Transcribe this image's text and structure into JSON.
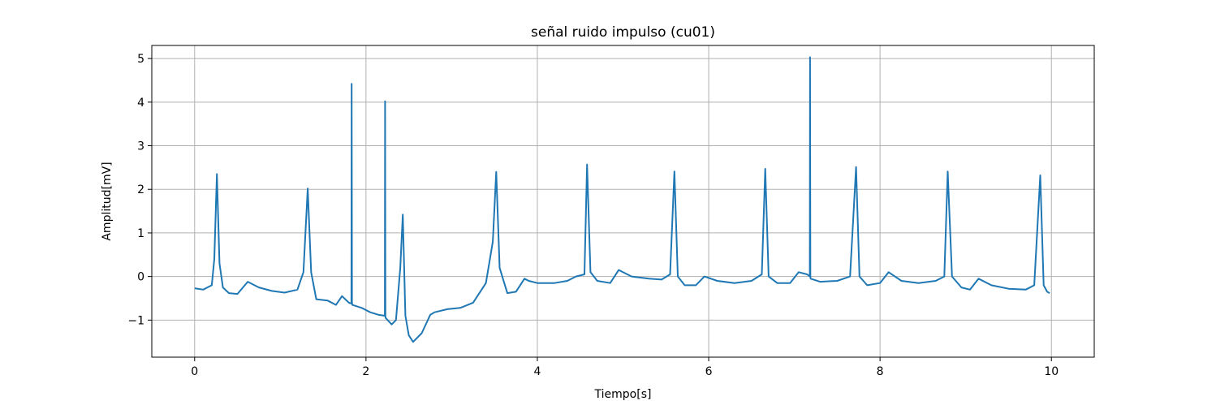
{
  "chart_data": {
    "type": "line",
    "title": "señal ruido impulso (cu01)",
    "xlabel": "Tiempo[s]",
    "ylabel": "Amplitud[mV]",
    "xlim": [
      -0.5,
      10.5
    ],
    "ylim": [
      -1.85,
      5.3
    ],
    "xticks": [
      0,
      2,
      4,
      6,
      8,
      10
    ],
    "xtick_labels": [
      "0",
      "2",
      "4",
      "6",
      "8",
      "10"
    ],
    "yticks": [
      -1,
      0,
      1,
      2,
      3,
      4,
      5
    ],
    "ytick_labels": [
      "−1",
      "0",
      "1",
      "2",
      "3",
      "4",
      "5"
    ],
    "grid": true,
    "color": "#1f77b4",
    "series": [
      {
        "x": [
          0.0,
          0.1,
          0.2,
          0.23,
          0.26,
          0.29,
          0.33,
          0.4,
          0.5,
          0.62,
          0.75,
          0.9,
          1.05,
          1.2,
          1.27,
          1.32,
          1.36,
          1.42,
          1.55,
          1.65,
          1.72,
          1.8,
          1.83,
          1.833,
          1.836,
          1.84,
          1.95,
          2.05,
          2.15,
          2.22,
          2.223,
          2.227,
          2.23,
          2.3,
          2.35,
          2.4,
          2.43,
          2.46,
          2.5,
          2.55,
          2.65,
          2.75,
          2.8,
          2.95,
          3.1,
          3.25,
          3.4,
          3.48,
          3.52,
          3.56,
          3.65,
          3.75,
          3.85,
          3.9,
          4.0,
          4.2,
          4.35,
          4.45,
          4.55,
          4.58,
          4.62,
          4.7,
          4.85,
          4.95,
          5.1,
          5.3,
          5.45,
          5.55,
          5.6,
          5.64,
          5.72,
          5.85,
          5.95,
          6.1,
          6.3,
          6.5,
          6.62,
          6.66,
          6.7,
          6.8,
          6.95,
          7.05,
          7.15,
          7.18,
          7.183,
          7.187,
          7.19,
          7.3,
          7.5,
          7.65,
          7.72,
          7.76,
          7.85,
          8.0,
          8.1,
          8.25,
          8.45,
          8.65,
          8.75,
          8.79,
          8.84,
          8.95,
          9.05,
          9.15,
          9.3,
          9.5,
          9.7,
          9.8,
          9.87,
          9.91,
          9.95,
          9.98
        ],
        "y": [
          -0.27,
          -0.3,
          -0.2,
          0.4,
          2.35,
          0.3,
          -0.25,
          -0.38,
          -0.4,
          -0.12,
          -0.25,
          -0.33,
          -0.37,
          -0.3,
          0.1,
          2.02,
          0.1,
          -0.52,
          -0.55,
          -0.65,
          -0.45,
          -0.6,
          -0.62,
          4.42,
          -0.6,
          -0.65,
          -0.72,
          -0.82,
          -0.88,
          -0.9,
          4.02,
          -0.92,
          -0.95,
          -1.1,
          -1.0,
          0.2,
          1.42,
          -0.9,
          -1.35,
          -1.5,
          -1.3,
          -0.88,
          -0.82,
          -0.75,
          -0.72,
          -0.6,
          -0.15,
          0.8,
          2.4,
          0.2,
          -0.38,
          -0.35,
          -0.05,
          -0.1,
          -0.15,
          -0.15,
          -0.1,
          0.0,
          0.05,
          2.57,
          0.1,
          -0.1,
          -0.15,
          0.15,
          0.0,
          -0.05,
          -0.07,
          0.05,
          2.41,
          0.0,
          -0.2,
          -0.2,
          0.0,
          -0.1,
          -0.15,
          -0.1,
          0.05,
          2.47,
          0.0,
          -0.15,
          -0.15,
          0.1,
          0.05,
          0.0,
          5.03,
          0.0,
          -0.05,
          -0.12,
          -0.1,
          0.0,
          2.51,
          0.0,
          -0.2,
          -0.15,
          0.1,
          -0.1,
          -0.15,
          -0.1,
          0.0,
          2.41,
          0.0,
          -0.25,
          -0.3,
          -0.05,
          -0.2,
          -0.28,
          -0.3,
          -0.2,
          2.32,
          -0.2,
          -0.35,
          -0.38
        ]
      }
    ]
  }
}
